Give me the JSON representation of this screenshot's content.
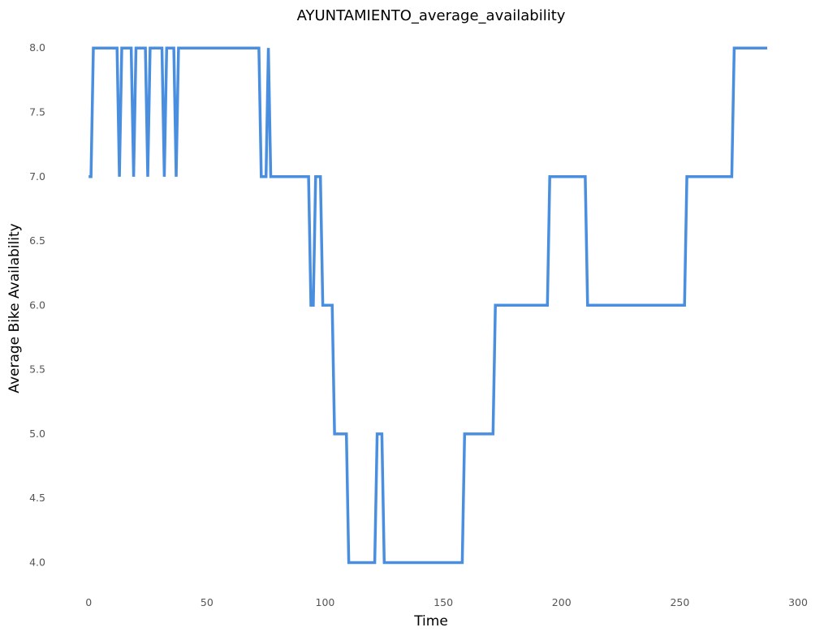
{
  "chart_data": {
    "type": "line",
    "title": "AYUNTAMIENTO_average_availability",
    "xlabel": "Time",
    "ylabel": "Average Bike Availability",
    "xlim": [
      -9,
      300
    ],
    "ylim": [
      3.82,
      8.14
    ],
    "xticks": [
      0,
      50,
      100,
      150,
      200,
      250,
      300
    ],
    "yticks": [
      4.0,
      4.5,
      5.0,
      5.5,
      6.0,
      6.5,
      7.0,
      7.5,
      8.0
    ],
    "grid": false,
    "line_color": "#4a8fdf",
    "series": [
      {
        "x": [
          0,
          1,
          2,
          12,
          13,
          14,
          18,
          19,
          20,
          24,
          25,
          26,
          31,
          32,
          33,
          36,
          37,
          38,
          72,
          73,
          75,
          76,
          77,
          93,
          94,
          95,
          96,
          98,
          99,
          103,
          104,
          109,
          110,
          121,
          122,
          124,
          125,
          158,
          159,
          171,
          172,
          194,
          195,
          210,
          211,
          252,
          253,
          272,
          273,
          287
        ],
        "y": [
          7.0,
          7.0,
          8.0,
          8.0,
          7.0,
          8.0,
          8.0,
          7.0,
          8.0,
          8.0,
          7.0,
          8.0,
          8.0,
          7.0,
          8.0,
          8.0,
          7.0,
          8.0,
          8.0,
          7.0,
          7.0,
          8.0,
          7.0,
          7.0,
          6.0,
          6.0,
          7.0,
          7.0,
          6.0,
          6.0,
          5.0,
          5.0,
          4.0,
          4.0,
          5.0,
          5.0,
          4.0,
          4.0,
          5.0,
          5.0,
          6.0,
          6.0,
          7.0,
          7.0,
          6.0,
          6.0,
          7.0,
          7.0,
          8.0,
          8.0
        ]
      }
    ]
  }
}
